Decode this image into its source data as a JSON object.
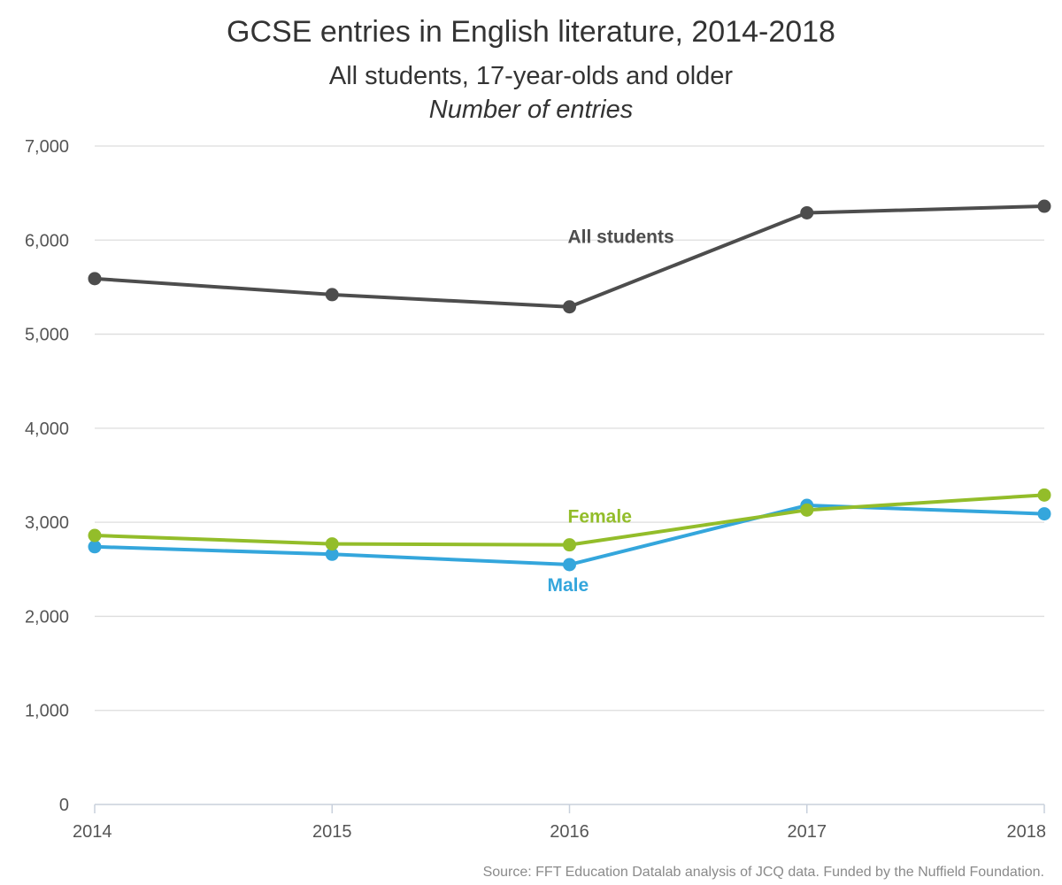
{
  "chart_data": {
    "type": "line",
    "title": "GCSE entries in English literature, 2014-2018",
    "subtitle": "All students, 17-year-olds and older",
    "subtitle2": "Number of entries",
    "x": [
      "2014",
      "2015",
      "2016",
      "2017",
      "2018"
    ],
    "ylim": [
      0,
      7000
    ],
    "y_ticks": [
      {
        "value": 0,
        "label": "0"
      },
      {
        "value": 1000,
        "label": "1,000"
      },
      {
        "value": 2000,
        "label": "2,000"
      },
      {
        "value": 3000,
        "label": "3,000"
      },
      {
        "value": 4000,
        "label": "4,000"
      },
      {
        "value": 5000,
        "label": "5,000"
      },
      {
        "value": 6000,
        "label": "6,000"
      },
      {
        "value": 7000,
        "label": "7,000"
      }
    ],
    "grid": true,
    "series": [
      {
        "name": "All students",
        "color": "#4d4d4d",
        "values": [
          5590,
          5420,
          5290,
          6290,
          6360
        ]
      },
      {
        "name": "Female",
        "color": "#93bd2a",
        "values": [
          2860,
          2770,
          2760,
          3130,
          3290
        ]
      },
      {
        "name": "Male",
        "color": "#34a6dc",
        "values": [
          2740,
          2660,
          2550,
          3180,
          3090
        ]
      }
    ],
    "source": "Source: FFT Education Datalab analysis of JCQ data. Funded by the Nuffield Foundation."
  }
}
